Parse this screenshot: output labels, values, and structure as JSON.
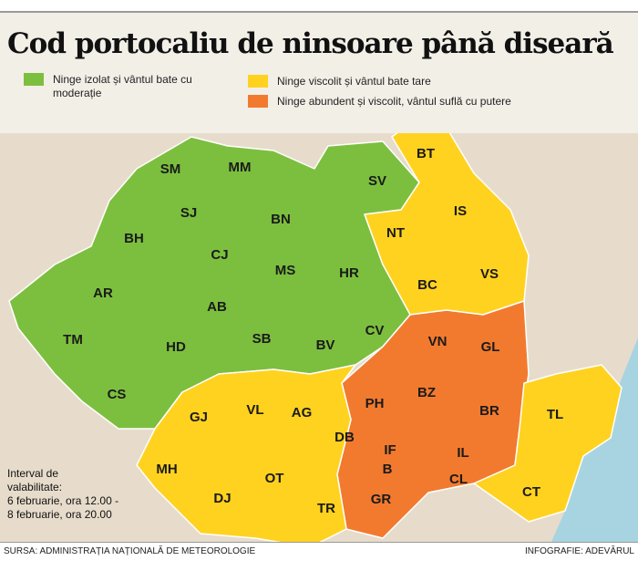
{
  "header": {
    "title": "Cod portocaliu de ninsoare până diseară"
  },
  "legend": [
    {
      "label": "Ninge izolat și vântul bate cu moderație",
      "color": "#7cbf3f"
    },
    {
      "label": "Ninge viscolit și vântul bate tare",
      "color": "#ffd21f"
    },
    {
      "label": "Ninge abundent și viscolit, vântul suflă cu putere",
      "color": "#f27a2e"
    }
  ],
  "counties": [
    "SM",
    "MM",
    "BT",
    "SV",
    "SJ",
    "BN",
    "IS",
    "NT",
    "BH",
    "CJ",
    "AR",
    "MS",
    "HR",
    "BC",
    "VS",
    "AB",
    "TM",
    "HD",
    "SB",
    "BV",
    "CV",
    "VN",
    "GL",
    "CS",
    "GJ",
    "VL",
    "AG",
    "PH",
    "BZ",
    "BR",
    "TL",
    "DB",
    "MH",
    "IF",
    "IL",
    "B",
    "OT",
    "DJ",
    "CL",
    "CT",
    "GR",
    "TR"
  ],
  "interval": [
    "Interval de",
    "valabilitate:",
    "6 februarie, ora 12.00 -",
    "8 februarie, ora 20.00"
  ],
  "footer": {
    "source": "SURSA: ADMINISTRAȚIA NAȚIONALĂ DE METEOROLOGIE",
    "credit": "INFOGRAFIE: ADEVĂRUL"
  }
}
